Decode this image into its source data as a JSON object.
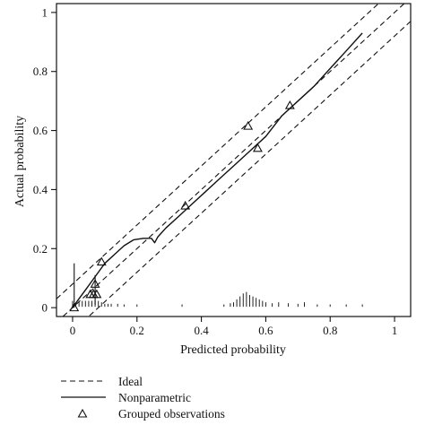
{
  "chart_data": {
    "type": "line",
    "title": "",
    "xlabel": "Predicted probability",
    "ylabel": "Actual probability",
    "xlim": [
      -0.05,
      1.05
    ],
    "ylim": [
      -0.03,
      1.03
    ],
    "grid": false,
    "legend_placement": "bottom-left",
    "x_ticks": [
      0,
      0.2,
      0.4,
      0.6,
      0.8,
      1
    ],
    "x_tick_labels": [
      "0",
      "0.2",
      "0.4",
      "0.6",
      "0.8",
      "1"
    ],
    "y_ticks": [
      0,
      0.2,
      0.4,
      0.6,
      0.8,
      1
    ],
    "y_tick_labels": [
      "0",
      "0.2",
      "0.4",
      "0.6",
      "0.8",
      "1"
    ],
    "legend": [
      {
        "label": "Ideal",
        "style": "dashed"
      },
      {
        "label": "Nonparametric",
        "style": "solid"
      },
      {
        "label": "Grouped observations",
        "style": "triangle"
      }
    ],
    "ideal_lines": [
      {
        "x": [
          -0.05,
          1.05
        ],
        "y": [
          -0.05,
          1.05
        ]
      },
      {
        "x": [
          -0.05,
          1.05
        ],
        "y": [
          0.03,
          1.13
        ]
      },
      {
        "x": [
          -0.05,
          1.05
        ],
        "y": [
          -0.13,
          0.97
        ]
      }
    ],
    "nonparametric": {
      "x": [
        0.0,
        0.02,
        0.04,
        0.06,
        0.08,
        0.1,
        0.13,
        0.16,
        0.19,
        0.22,
        0.245,
        0.255,
        0.265,
        0.29,
        0.33,
        0.37,
        0.41,
        0.45,
        0.5,
        0.55,
        0.6,
        0.65,
        0.7,
        0.75,
        0.8,
        0.85,
        0.9
      ],
      "y": [
        0.0,
        0.03,
        0.06,
        0.09,
        0.12,
        0.15,
        0.18,
        0.21,
        0.23,
        0.235,
        0.235,
        0.22,
        0.24,
        0.27,
        0.31,
        0.35,
        0.39,
        0.43,
        0.48,
        0.53,
        0.58,
        0.65,
        0.7,
        0.75,
        0.81,
        0.87,
        0.93
      ]
    },
    "grouped_observations": {
      "x": [
        0.005,
        0.055,
        0.065,
        0.07,
        0.075,
        0.09,
        0.35,
        0.545,
        0.575,
        0.675
      ],
      "y": [
        0.0,
        0.045,
        0.045,
        0.08,
        0.045,
        0.155,
        0.345,
        0.615,
        0.54,
        0.685
      ]
    },
    "error_bars": [
      {
        "x": 0.005,
        "y_low": 0.0,
        "y_high": 0.15
      },
      {
        "x": 0.07,
        "y_low": 0.01,
        "y_high": 0.11
      }
    ],
    "rug": {
      "x": [
        0.0,
        0.01,
        0.02,
        0.03,
        0.04,
        0.05,
        0.06,
        0.07,
        0.08,
        0.09,
        0.1,
        0.11,
        0.12,
        0.14,
        0.16,
        0.2,
        0.34,
        0.47,
        0.49,
        0.5,
        0.51,
        0.52,
        0.53,
        0.54,
        0.55,
        0.56,
        0.57,
        0.58,
        0.59,
        0.6,
        0.62,
        0.64,
        0.67,
        0.7,
        0.72,
        0.76,
        0.8,
        0.85,
        0.9
      ],
      "height": [
        0.02,
        0.015,
        0.02,
        0.02,
        0.02,
        0.02,
        0.02,
        0.02,
        0.02,
        0.015,
        0.01,
        0.01,
        0.01,
        0.01,
        0.008,
        0.008,
        0.008,
        0.008,
        0.012,
        0.015,
        0.025,
        0.035,
        0.045,
        0.05,
        0.04,
        0.035,
        0.03,
        0.025,
        0.02,
        0.015,
        0.012,
        0.015,
        0.012,
        0.01,
        0.015,
        0.008,
        0.008,
        0.008,
        0.008
      ]
    }
  }
}
